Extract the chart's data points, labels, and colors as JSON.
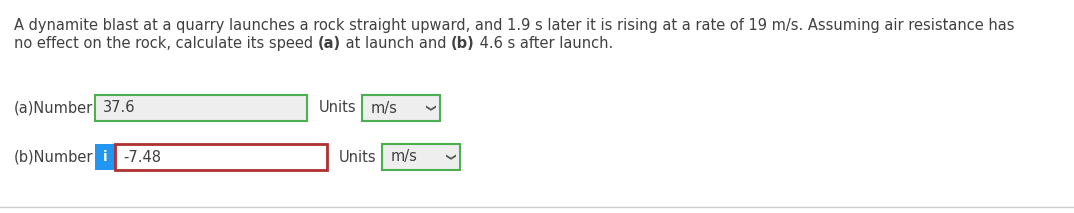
{
  "question_text_line1": "A dynamite blast at a quarry launches a rock straight upward, and 1.9 s later it is rising at a rate of 19 m/s. Assuming air resistance has",
  "question_text_line2_parts": [
    [
      "no effect on the rock, calculate its speed ",
      false
    ],
    [
      "(a)",
      true
    ],
    [
      " at launch and ",
      false
    ],
    [
      "(b)",
      true
    ],
    [
      " 4.6 s after launch.",
      false
    ]
  ],
  "part_a_label": "(a)Number",
  "part_a_value": "37.6",
  "part_a_units_label": "Units",
  "part_a_units_value": "m/s",
  "part_b_label": "(b)Number",
  "part_b_value": "-7.48",
  "part_b_units_label": "Units",
  "part_b_units_value": "m/s",
  "info_icon_color": "#2196F3",
  "info_icon_text": "i",
  "bg_color": "#ffffff",
  "text_color": "#404040",
  "box_border_green": "#4CAF50",
  "box_border_red": "#b03030",
  "box_fill_a": "#eeeeee",
  "box_fill_b": "#ffffff",
  "units_box_fill": "#eeeeee",
  "bottom_line_color": "#cccccc",
  "font_size_question": 10.5,
  "font_size_answer": 10.5,
  "fig_w": 10.74,
  "fig_h": 2.13,
  "dpi": 100
}
